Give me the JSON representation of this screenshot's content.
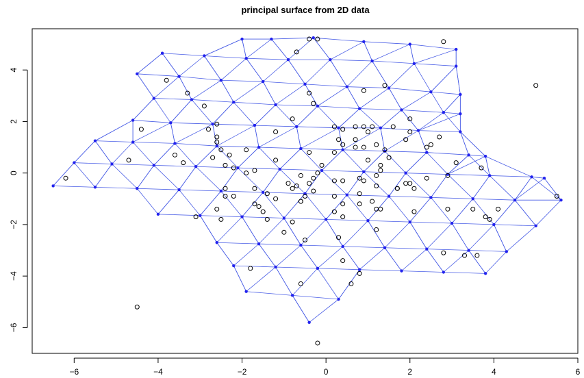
{
  "chart_data": {
    "type": "scatter",
    "title": "principal surface from 2D data",
    "xlabel": "",
    "ylabel": "",
    "xlim": [
      -7.0,
      6.0
    ],
    "ylim": [
      -7.0,
      5.6
    ],
    "x_ticks": [
      -6,
      -4,
      -2,
      0,
      2,
      4,
      6
    ],
    "y_ticks": [
      -6,
      -4,
      -2,
      0,
      2,
      4
    ],
    "grid": false,
    "colors": {
      "mesh": "#4a5ee6",
      "node": "#2222ee",
      "points": "#000000"
    },
    "mesh_rows": [
      [
        [
          -2.0,
          5.2
        ],
        [
          -1.3,
          5.2
        ],
        [
          -0.3,
          5.25
        ],
        [
          0.9,
          5.1
        ],
        [
          2.0,
          5.0
        ],
        [
          3.1,
          4.8
        ]
      ],
      [
        [
          -3.9,
          4.65
        ],
        [
          -2.9,
          4.55
        ],
        [
          -1.9,
          4.45
        ],
        [
          -0.9,
          4.4
        ],
        [
          0.1,
          4.4
        ],
        [
          1.1,
          4.35
        ],
        [
          2.1,
          4.25
        ],
        [
          3.1,
          4.15
        ]
      ],
      [
        [
          -4.5,
          3.85
        ],
        [
          -3.5,
          3.75
        ],
        [
          -2.5,
          3.6
        ],
        [
          -1.5,
          3.55
        ],
        [
          -0.5,
          3.45
        ],
        [
          0.5,
          3.35
        ],
        [
          1.5,
          3.3
        ],
        [
          2.5,
          3.15
        ],
        [
          3.2,
          3.05
        ]
      ],
      [
        [
          -4.1,
          2.9
        ],
        [
          -3.2,
          2.85
        ],
        [
          -2.2,
          2.75
        ],
        [
          -1.2,
          2.65
        ],
        [
          -0.2,
          2.6
        ],
        [
          0.8,
          2.5
        ],
        [
          1.8,
          2.45
        ],
        [
          2.8,
          2.35
        ],
        [
          3.2,
          2.3
        ]
      ],
      [
        [
          -4.6,
          2.05
        ],
        [
          -3.7,
          1.95
        ],
        [
          -2.7,
          1.9
        ],
        [
          -1.7,
          1.85
        ],
        [
          -0.7,
          1.8
        ],
        [
          0.3,
          1.75
        ],
        [
          1.3,
          1.75
        ],
        [
          2.2,
          1.65
        ],
        [
          3.2,
          1.6
        ]
      ],
      [
        [
          -5.5,
          1.25
        ],
        [
          -4.6,
          1.2
        ],
        [
          -3.6,
          1.15
        ],
        [
          -2.6,
          1.05
        ],
        [
          -1.6,
          1.0
        ],
        [
          -0.6,
          0.95
        ],
        [
          0.4,
          0.9
        ],
        [
          1.4,
          0.85
        ],
        [
          2.4,
          0.8
        ],
        [
          3.4,
          0.7
        ],
        [
          3.8,
          0.65
        ]
      ],
      [
        [
          -6.0,
          0.4
        ],
        [
          -5.1,
          0.35
        ],
        [
          -4.1,
          0.3
        ],
        [
          -3.1,
          0.25
        ],
        [
          -2.1,
          0.2
        ],
        [
          -1.1,
          0.15
        ],
        [
          -0.1,
          0.1
        ],
        [
          0.9,
          0.05
        ],
        [
          1.9,
          0.0
        ],
        [
          2.9,
          -0.05
        ],
        [
          3.9,
          -0.1
        ],
        [
          4.9,
          -0.15
        ],
        [
          5.2,
          -0.2
        ]
      ],
      [
        [
          -6.5,
          -0.5
        ],
        [
          -5.5,
          -0.55
        ],
        [
          -4.5,
          -0.6
        ],
        [
          -3.5,
          -0.65
        ],
        [
          -2.5,
          -0.7
        ],
        [
          -1.5,
          -0.75
        ],
        [
          -0.5,
          -0.8
        ],
        [
          0.5,
          -0.85
        ],
        [
          1.5,
          -0.9
        ],
        [
          2.5,
          -0.95
        ],
        [
          3.5,
          -1.0
        ],
        [
          4.5,
          -1.05
        ],
        [
          5.6,
          -1.05
        ]
      ],
      [
        [
          -4.0,
          -1.6
        ],
        [
          -3.0,
          -1.65
        ],
        [
          -2.0,
          -1.7
        ],
        [
          -1.0,
          -1.75
        ],
        [
          0.0,
          -1.8
        ],
        [
          1.0,
          -1.85
        ],
        [
          2.0,
          -1.9
        ],
        [
          3.0,
          -1.95
        ],
        [
          4.0,
          -2.0
        ],
        [
          5.0,
          -2.05
        ]
      ],
      [
        [
          -2.6,
          -2.7
        ],
        [
          -1.6,
          -2.75
        ],
        [
          -0.6,
          -2.8
        ],
        [
          0.4,
          -2.85
        ],
        [
          1.4,
          -2.9
        ],
        [
          2.4,
          -2.95
        ],
        [
          3.4,
          -3.0
        ],
        [
          4.3,
          -3.05
        ]
      ],
      [
        [
          -2.2,
          -3.6
        ],
        [
          -1.2,
          -3.65
        ],
        [
          -0.2,
          -3.7
        ],
        [
          0.8,
          -3.75
        ],
        [
          1.8,
          -3.8
        ],
        [
          2.8,
          -3.85
        ],
        [
          3.8,
          -3.9
        ]
      ],
      [
        [
          -1.9,
          -4.6
        ],
        [
          -0.8,
          -4.75
        ],
        [
          0.3,
          -4.9
        ]
      ],
      [
        [
          -0.4,
          -5.8
        ]
      ]
    ],
    "points": [
      [
        -0.4,
        5.2
      ],
      [
        -0.2,
        5.2
      ],
      [
        -0.7,
        4.7
      ],
      [
        2.8,
        5.1
      ],
      [
        5.0,
        3.4
      ],
      [
        -3.8,
        3.6
      ],
      [
        -3.3,
        3.1
      ],
      [
        1.4,
        3.4
      ],
      [
        -0.4,
        3.1
      ],
      [
        -0.3,
        2.7
      ],
      [
        -2.9,
        2.6
      ],
      [
        0.9,
        3.2
      ],
      [
        -2.6,
        1.9
      ],
      [
        -4.4,
        1.7
      ],
      [
        -2.8,
        1.7
      ],
      [
        -2.6,
        1.4
      ],
      [
        -1.2,
        1.6
      ],
      [
        -0.8,
        2.1
      ],
      [
        0.2,
        1.8
      ],
      [
        0.4,
        1.7
      ],
      [
        0.7,
        1.8
      ],
      [
        0.9,
        1.8
      ],
      [
        1.0,
        1.6
      ],
      [
        1.1,
        1.8
      ],
      [
        1.6,
        1.8
      ],
      [
        2.0,
        1.6
      ],
      [
        1.9,
        1.3
      ],
      [
        2.0,
        2.1
      ],
      [
        -2.6,
        1.2
      ],
      [
        -1.9,
        0.9
      ],
      [
        -2.3,
        0.7
      ],
      [
        -2.5,
        0.9
      ],
      [
        -3.6,
        0.7
      ],
      [
        -4.7,
        0.5
      ],
      [
        -0.4,
        0.8
      ],
      [
        0.2,
        0.8
      ],
      [
        0.3,
        1.3
      ],
      [
        0.4,
        1.1
      ],
      [
        0.7,
        1.3
      ],
      [
        0.9,
        1.0
      ],
      [
        0.7,
        1.0
      ],
      [
        1.2,
        1.1
      ],
      [
        1.0,
        0.5
      ],
      [
        1.4,
        0.9
      ],
      [
        1.5,
        0.6
      ],
      [
        1.3,
        0.3
      ],
      [
        2.4,
        1.0
      ],
      [
        2.5,
        1.1
      ],
      [
        2.7,
        1.4
      ],
      [
        3.1,
        0.4
      ],
      [
        3.7,
        0.2
      ],
      [
        -6.2,
        -0.2
      ],
      [
        -3.4,
        0.4
      ],
      [
        -2.7,
        0.6
      ],
      [
        -2.4,
        0.3
      ],
      [
        -2.2,
        0.2
      ],
      [
        -1.7,
        0.1
      ],
      [
        -1.9,
        0.0
      ],
      [
        -1.2,
        0.5
      ],
      [
        -0.6,
        -0.1
      ],
      [
        -0.2,
        0.0
      ],
      [
        -0.1,
        0.3
      ],
      [
        -0.4,
        -0.4
      ],
      [
        -0.5,
        -0.9
      ],
      [
        -0.6,
        -1.1
      ],
      [
        -0.3,
        -0.2
      ],
      [
        0.2,
        -0.3
      ],
      [
        0.4,
        -0.3
      ],
      [
        0.8,
        -0.2
      ],
      [
        0.9,
        -0.3
      ],
      [
        0.8,
        -0.8
      ],
      [
        1.2,
        -0.1
      ],
      [
        1.2,
        -0.5
      ],
      [
        1.3,
        0.1
      ],
      [
        1.7,
        -0.6
      ],
      [
        1.9,
        -0.4
      ],
      [
        2.1,
        -0.6
      ],
      [
        2.4,
        -0.2
      ],
      [
        2.9,
        -0.1
      ],
      [
        -2.4,
        -0.6
      ],
      [
        -2.4,
        -0.9
      ],
      [
        -2.2,
        -0.9
      ],
      [
        -1.7,
        -0.6
      ],
      [
        -1.4,
        -0.8
      ],
      [
        -1.7,
        -1.2
      ],
      [
        -1.6,
        -1.3
      ],
      [
        -1.2,
        -1.0
      ],
      [
        -0.7,
        -0.5
      ],
      [
        -0.9,
        -0.4
      ],
      [
        -0.8,
        -0.6
      ],
      [
        -0.6,
        -1.1
      ],
      [
        -0.3,
        -0.7
      ],
      [
        0.2,
        -0.9
      ],
      [
        0.4,
        -1.2
      ],
      [
        0.8,
        -1.2
      ],
      [
        1.1,
        -1.1
      ],
      [
        1.3,
        -1.4
      ],
      [
        1.7,
        -0.6
      ],
      [
        2.0,
        -0.4
      ],
      [
        -2.6,
        -1.4
      ],
      [
        -3.1,
        -1.7
      ],
      [
        -2.5,
        -1.8
      ],
      [
        -1.5,
        -1.5
      ],
      [
        -1.4,
        -1.8
      ],
      [
        -0.8,
        -1.9
      ],
      [
        0.2,
        -1.5
      ],
      [
        0.4,
        -1.7
      ],
      [
        1.2,
        -1.4
      ],
      [
        2.1,
        -1.5
      ],
      [
        2.9,
        -1.4
      ],
      [
        3.5,
        -1.4
      ],
      [
        3.8,
        -1.7
      ],
      [
        3.9,
        -1.8
      ],
      [
        4.1,
        -1.4
      ],
      [
        5.5,
        -0.9
      ],
      [
        -1.0,
        -2.3
      ],
      [
        -0.5,
        -2.6
      ],
      [
        0.3,
        -2.5
      ],
      [
        1.2,
        -2.2
      ],
      [
        0.4,
        -3.4
      ],
      [
        0.8,
        -3.9
      ],
      [
        2.8,
        -3.1
      ],
      [
        3.3,
        -3.2
      ],
      [
        3.6,
        -3.2
      ],
      [
        -1.8,
        -3.7
      ],
      [
        -0.6,
        -4.3
      ],
      [
        0.6,
        -4.3
      ],
      [
        -4.5,
        -5.2
      ],
      [
        -0.2,
        -6.6
      ]
    ]
  }
}
